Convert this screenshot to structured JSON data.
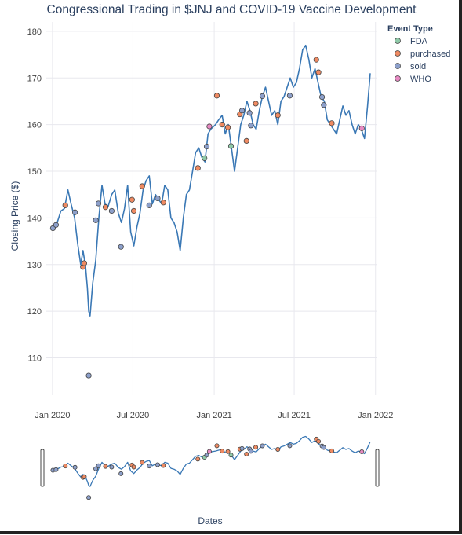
{
  "chart_data": {
    "type": "line",
    "title": "Congressional Trading in $JNJ and COVID-19 Vaccine Development",
    "xlabel": "Dates",
    "ylabel": "Closing Price ($)",
    "xlim": [
      "2019-12-18",
      "2022-01-05"
    ],
    "ylim": [
      102,
      182
    ],
    "y_ticks": [
      110,
      120,
      130,
      140,
      150,
      160,
      170,
      180
    ],
    "x_ticks": [
      {
        "date": "2020-01-01",
        "label": "Jan 2020"
      },
      {
        "date": "2020-07-01",
        "label": "Jul 2020"
      },
      {
        "date": "2021-01-01",
        "label": "Jan 2021"
      },
      {
        "date": "2021-07-01",
        "label": "Jul 2021"
      },
      {
        "date": "2022-01-01",
        "label": "Jan 2022"
      }
    ],
    "grid": true,
    "line_color": "#3a78b5",
    "series": [
      {
        "x": [
          "2020-01-02",
          "2020-01-10",
          "2020-01-20",
          "2020-01-28",
          "2020-02-05",
          "2020-02-12",
          "2020-02-20",
          "2020-02-27",
          "2020-03-05",
          "2020-03-10",
          "2020-03-16",
          "2020-03-20",
          "2020-03-23",
          "2020-03-26",
          "2020-04-01",
          "2020-04-08",
          "2020-04-15",
          "2020-04-22",
          "2020-04-29",
          "2020-05-06",
          "2020-05-14",
          "2020-05-21",
          "2020-05-29",
          "2020-06-05",
          "2020-06-12",
          "2020-06-19",
          "2020-06-26",
          "2020-07-03",
          "2020-07-10",
          "2020-07-17",
          "2020-07-24",
          "2020-07-31",
          "2020-08-07",
          "2020-08-14",
          "2020-08-21",
          "2020-08-28",
          "2020-09-04",
          "2020-09-11",
          "2020-09-18",
          "2020-09-25",
          "2020-10-02",
          "2020-10-09",
          "2020-10-16",
          "2020-10-23",
          "2020-10-30",
          "2020-11-06",
          "2020-11-13",
          "2020-11-20",
          "2020-11-27",
          "2020-12-04",
          "2020-12-11",
          "2020-12-18",
          "2020-12-24",
          "2021-01-04",
          "2021-01-11",
          "2021-01-19",
          "2021-01-26",
          "2021-02-02",
          "2021-02-09",
          "2021-02-16",
          "2021-02-23",
          "2021-03-02",
          "2021-03-09",
          "2021-03-16",
          "2021-03-23",
          "2021-03-30",
          "2021-04-06",
          "2021-04-13",
          "2021-04-20",
          "2021-04-27",
          "2021-05-04",
          "2021-05-11",
          "2021-05-18",
          "2021-05-25",
          "2021-06-01",
          "2021-06-08",
          "2021-06-15",
          "2021-06-22",
          "2021-06-29",
          "2021-07-06",
          "2021-07-13",
          "2021-07-20",
          "2021-07-27",
          "2021-08-03",
          "2021-08-10",
          "2021-08-17",
          "2021-08-24",
          "2021-08-31",
          "2021-09-07",
          "2021-09-14",
          "2021-09-21",
          "2021-09-28",
          "2021-10-05",
          "2021-10-12",
          "2021-10-19",
          "2021-10-26",
          "2021-11-02",
          "2021-11-09",
          "2021-11-16",
          "2021-11-23",
          "2021-11-30",
          "2021-12-07",
          "2021-12-14",
          "2021-12-20"
        ],
        "y": [
          137.5,
          138.5,
          141.5,
          142,
          146,
          143,
          140,
          134.5,
          130,
          133,
          129.5,
          125,
          120,
          119,
          126,
          131,
          140,
          147,
          143,
          142.5,
          145,
          146,
          141,
          139,
          142,
          147,
          137,
          134,
          138,
          141,
          146,
          148,
          149,
          143,
          145,
          144,
          143,
          147,
          146,
          140,
          139,
          137,
          133,
          140,
          145,
          146,
          150,
          154,
          155,
          153,
          152,
          158,
          159,
          160,
          161,
          162,
          158,
          160,
          155,
          150,
          155,
          160,
          162,
          165,
          163,
          160,
          159,
          163,
          166,
          168,
          165,
          162,
          163,
          160,
          165,
          166,
          168,
          170,
          168,
          169,
          172,
          176,
          177,
          174,
          170,
          172,
          169,
          166,
          165,
          161,
          160,
          159,
          158,
          161,
          164,
          162,
          163,
          160,
          158,
          160,
          159,
          157,
          164,
          171
        ],
        "name": ""
      }
    ],
    "events": [
      {
        "x": "2020-01-02",
        "y": 137.8,
        "type": "sold"
      },
      {
        "x": "2020-01-09",
        "y": 138.5,
        "type": "sold"
      },
      {
        "x": "2020-01-30",
        "y": 142.7,
        "type": "purchased"
      },
      {
        "x": "2020-02-21",
        "y": 141.2,
        "type": "sold"
      },
      {
        "x": "2020-03-10",
        "y": 129.5,
        "type": "purchased"
      },
      {
        "x": "2020-03-13",
        "y": 130.3,
        "type": "purchased"
      },
      {
        "x": "2020-03-23",
        "y": 106.2,
        "type": "sold"
      },
      {
        "x": "2020-04-08",
        "y": 139.5,
        "type": "sold"
      },
      {
        "x": "2020-04-14",
        "y": 143.1,
        "type": "sold"
      },
      {
        "x": "2020-04-30",
        "y": 142.3,
        "type": "purchased"
      },
      {
        "x": "2020-05-14",
        "y": 141.5,
        "type": "sold"
      },
      {
        "x": "2020-06-04",
        "y": 133.8,
        "type": "sold"
      },
      {
        "x": "2020-06-29",
        "y": 143.9,
        "type": "purchased"
      },
      {
        "x": "2020-07-03",
        "y": 141.5,
        "type": "purchased"
      },
      {
        "x": "2020-07-22",
        "y": 146.8,
        "type": "purchased"
      },
      {
        "x": "2020-08-07",
        "y": 142.7,
        "type": "sold"
      },
      {
        "x": "2020-08-26",
        "y": 144.2,
        "type": "sold"
      },
      {
        "x": "2020-09-08",
        "y": 143.3,
        "type": "purchased"
      },
      {
        "x": "2020-11-25",
        "y": 150.7,
        "type": "purchased"
      },
      {
        "x": "2020-12-10",
        "y": 152.8,
        "type": "FDA"
      },
      {
        "x": "2020-12-15",
        "y": 155.3,
        "type": "sold"
      },
      {
        "x": "2020-12-21",
        "y": 159.6,
        "type": "WHO"
      },
      {
        "x": "2021-01-07",
        "y": 166.2,
        "type": "purchased"
      },
      {
        "x": "2021-01-19",
        "y": 160.0,
        "type": "purchased"
      },
      {
        "x": "2021-02-01",
        "y": 159.4,
        "type": "purchased"
      },
      {
        "x": "2021-02-08",
        "y": 155.4,
        "type": "FDA"
      },
      {
        "x": "2021-02-28",
        "y": 162.2,
        "type": "purchased"
      },
      {
        "x": "2021-03-05",
        "y": 163.0,
        "type": "sold"
      },
      {
        "x": "2021-03-15",
        "y": 156.5,
        "type": "purchased"
      },
      {
        "x": "2021-03-22",
        "y": 162.5,
        "type": "sold"
      },
      {
        "x": "2021-03-25",
        "y": 159.8,
        "type": "sold"
      },
      {
        "x": "2021-04-05",
        "y": 164.5,
        "type": "purchased"
      },
      {
        "x": "2021-04-20",
        "y": 166.1,
        "type": "sold"
      },
      {
        "x": "2021-05-25",
        "y": 162.0,
        "type": "purchased"
      },
      {
        "x": "2021-06-21",
        "y": 166.2,
        "type": "sold"
      },
      {
        "x": "2021-08-20",
        "y": 173.9,
        "type": "purchased"
      },
      {
        "x": "2021-08-25",
        "y": 171.2,
        "type": "purchased"
      },
      {
        "x": "2021-09-02",
        "y": 165.9,
        "type": "sold"
      },
      {
        "x": "2021-09-06",
        "y": 164.2,
        "type": "sold"
      },
      {
        "x": "2021-09-24",
        "y": 160.3,
        "type": "purchased"
      },
      {
        "x": "2021-12-01",
        "y": 159.2,
        "type": "WHO"
      }
    ],
    "legend": {
      "title": "Event Type",
      "placement": "top-right",
      "entries": [
        {
          "name": "FDA",
          "color": "#8fc9a8"
        },
        {
          "name": "purchased",
          "color": "#ef8a62"
        },
        {
          "name": "sold",
          "color": "#8da0cb"
        },
        {
          "name": "WHO",
          "color": "#e78ac3"
        }
      ]
    },
    "range_slider": true
  }
}
